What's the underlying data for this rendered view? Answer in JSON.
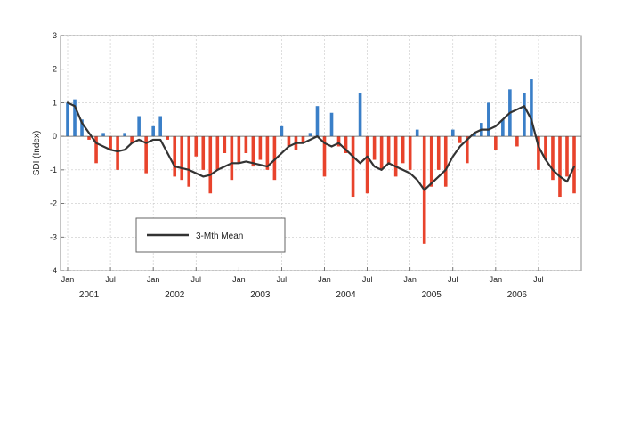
{
  "chart_data": {
    "type": "bar",
    "ylabel": "SDI (Index)",
    "ylim": [
      -4,
      3
    ],
    "yticks": [
      3,
      2,
      1,
      0,
      -1,
      -2,
      -3,
      -4
    ],
    "x_month_range": [
      0,
      71
    ],
    "xticks": [
      {
        "label": "Jan",
        "month": 0
      },
      {
        "label": "Jul",
        "month": 6
      },
      {
        "label": "Jan",
        "month": 12
      },
      {
        "label": "Jul",
        "month": 18
      },
      {
        "label": "Jan",
        "month": 24
      },
      {
        "label": "Jul",
        "month": 30
      },
      {
        "label": "Jan",
        "month": 36
      },
      {
        "label": "Jul",
        "month": 42
      },
      {
        "label": "Jan",
        "month": 48
      },
      {
        "label": "Jul",
        "month": 54
      },
      {
        "label": "Jan",
        "month": 60
      },
      {
        "label": "Jul",
        "month": 66
      }
    ],
    "years": [
      {
        "label": "2001",
        "month": 3
      },
      {
        "label": "2002",
        "month": 15
      },
      {
        "label": "2003",
        "month": 27
      },
      {
        "label": "2004",
        "month": 39
      },
      {
        "label": "2005",
        "month": 51
      },
      {
        "label": "2006",
        "month": 63
      }
    ],
    "grid": true,
    "positive_color": "#3a7fc8",
    "negative_color": "#e8432c",
    "line_color": "#333333",
    "legend": {
      "position": "bottom-left",
      "label": "3-Mth Mean"
    },
    "monthly_values": [
      1.0,
      1.1,
      0.5,
      -0.1,
      -0.8,
      0.1,
      -0.4,
      -1.0,
      0.1,
      -0.2,
      0.6,
      -1.1,
      0.3,
      0.6,
      -0.1,
      -1.2,
      -1.3,
      -1.5,
      -0.6,
      -1.0,
      -1.7,
      -1.0,
      -0.5,
      -1.3,
      -0.8,
      -0.5,
      -0.9,
      -0.7,
      -1.0,
      -1.3,
      0.3,
      -0.3,
      -0.4,
      -0.2,
      0.1,
      0.9,
      -1.2,
      0.7,
      -0.3,
      -0.5,
      -1.8,
      1.3,
      -1.7,
      -0.7,
      -1.0,
      -0.8,
      -1.2,
      -0.8,
      -1.0,
      0.2,
      -3.2,
      -1.5,
      -1.0,
      -1.5,
      0.2,
      -0.2,
      -0.8,
      0.1,
      0.4,
      1.0,
      -0.4,
      0.5,
      1.4,
      -0.3,
      1.3,
      1.7,
      -1.0,
      -0.7,
      -1.3,
      -1.8,
      -1.2,
      -1.7
    ],
    "mean_x_start": 0,
    "three_month_mean": [
      1.0,
      0.9,
      0.4,
      0.1,
      -0.2,
      -0.3,
      -0.4,
      -0.45,
      -0.4,
      -0.2,
      -0.1,
      -0.2,
      -0.1,
      -0.1,
      -0.5,
      -0.9,
      -0.95,
      -1.0,
      -1.1,
      -1.2,
      -1.15,
      -1.0,
      -0.9,
      -0.8,
      -0.8,
      -0.75,
      -0.8,
      -0.85,
      -0.9,
      -0.7,
      -0.5,
      -0.3,
      -0.2,
      -0.2,
      -0.1,
      0.0,
      -0.2,
      -0.3,
      -0.2,
      -0.4,
      -0.6,
      -0.8,
      -0.6,
      -0.9,
      -1.0,
      -0.8,
      -0.9,
      -1.0,
      -1.1,
      -1.3,
      -1.6,
      -1.4,
      -1.2,
      -1.0,
      -0.6,
      -0.3,
      -0.1,
      0.1,
      0.2,
      0.2,
      0.3,
      0.5,
      0.7,
      0.8,
      0.9,
      0.5,
      -0.3,
      -0.7,
      -1.0,
      -1.2,
      -1.35,
      -0.9
    ]
  }
}
